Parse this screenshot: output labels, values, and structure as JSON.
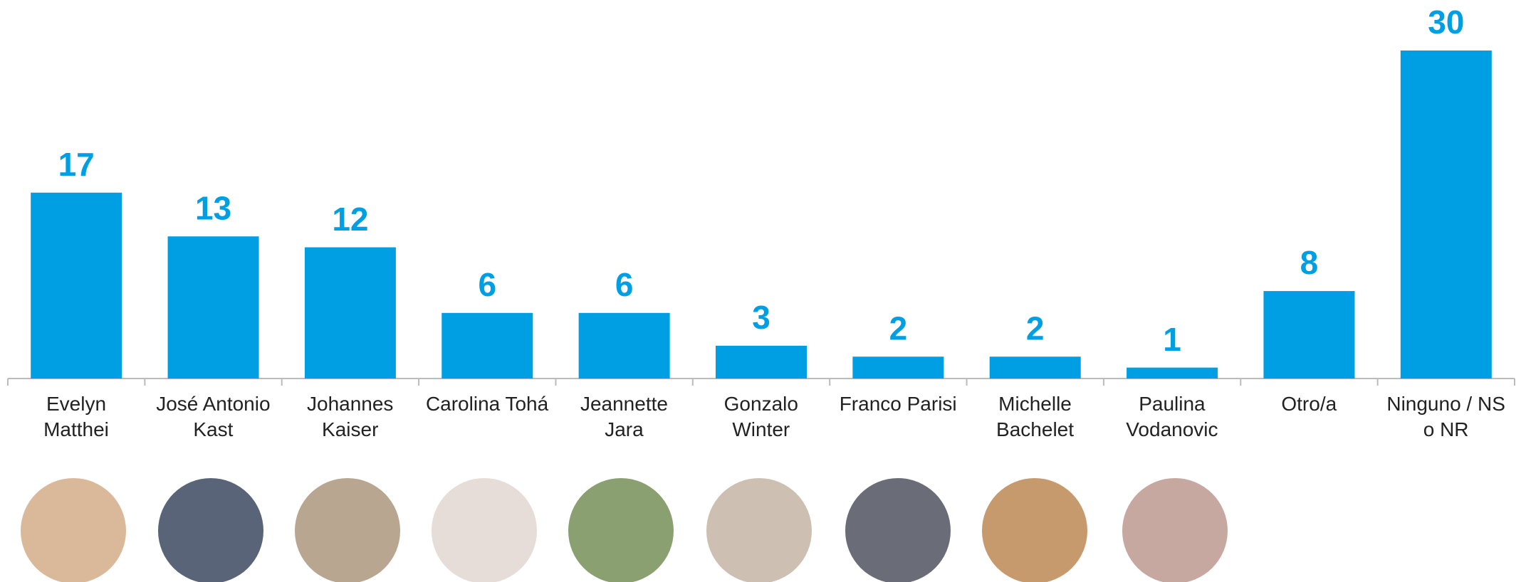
{
  "chart_data": {
    "type": "bar",
    "categories": [
      "Evelyn\nMatthei",
      "José Antonio\nKast",
      "Johannes\nKaiser",
      "Carolina Tohá",
      "Jeannette\nJara",
      "Gonzalo\nWinter",
      "Franco Parisi",
      "Michelle\nBachelet",
      "Paulina\nVodanovic",
      "Otro/a",
      "Ninguno / NS\no NR"
    ],
    "values": [
      17,
      13,
      12,
      6,
      6,
      3,
      2,
      2,
      1,
      8,
      30
    ],
    "color": "#009fe3",
    "ylim": [
      0,
      30
    ]
  }
}
